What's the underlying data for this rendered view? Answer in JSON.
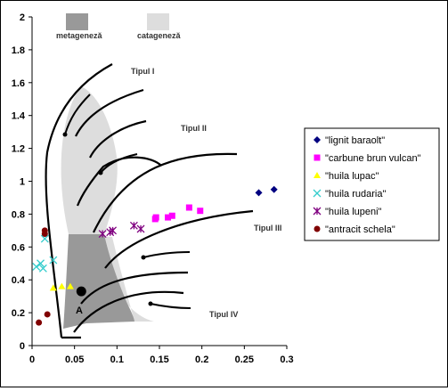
{
  "chart_data": {
    "type": "scatter",
    "title": "",
    "xlabel": "",
    "ylabel": "",
    "xlim": [
      0,
      0.3
    ],
    "ylim": [
      0,
      2
    ],
    "x_ticks": [
      "0",
      "0.05",
      "0.1",
      "0.15",
      "0.2",
      "0.25",
      "0.3"
    ],
    "y_ticks": [
      "0",
      "0.2",
      "0.4",
      "0.6",
      "0.8",
      "1",
      "1.2",
      "1.4",
      "1.6",
      "1.8",
      "2"
    ],
    "grid": false,
    "legend_position": "right",
    "region_labels": {
      "metagenesis": "metageneză",
      "catagenesis": "catageneză"
    },
    "type_labels": [
      "Tipul I",
      "Tipul II",
      "Tipul III",
      "Tipul IV"
    ],
    "point_label": "A",
    "colors": {
      "metagenesis": "#999999",
      "catagenesis": "#dddddd",
      "curves": "#000000"
    },
    "series": [
      {
        "name": "\"lignit baraolt\"",
        "marker": "diamond",
        "color": "#000080",
        "points": [
          [
            0.267,
            0.93
          ],
          [
            0.285,
            0.95
          ]
        ]
      },
      {
        "name": "\"carbune brun vulcan\"",
        "marker": "square",
        "color": "#ff00ff",
        "points": [
          [
            0.145,
            0.77
          ],
          [
            0.146,
            0.78
          ],
          [
            0.16,
            0.78
          ],
          [
            0.165,
            0.79
          ],
          [
            0.185,
            0.84
          ],
          [
            0.198,
            0.82
          ]
        ]
      },
      {
        "name": "\"huila lupac\"",
        "marker": "triangle",
        "color": "#ffff00",
        "points": [
          [
            0.025,
            0.35
          ],
          [
            0.035,
            0.36
          ],
          [
            0.045,
            0.36
          ]
        ]
      },
      {
        "name": "\"huila rudaria\"",
        "marker": "x",
        "color": "#33cccc",
        "points": [
          [
            0.005,
            0.48
          ],
          [
            0.01,
            0.5
          ],
          [
            0.013,
            0.47
          ],
          [
            0.015,
            0.65
          ],
          [
            0.025,
            0.52
          ]
        ]
      },
      {
        "name": "\"huila lupeni\"",
        "marker": "star",
        "color": "#800080",
        "points": [
          [
            0.083,
            0.68
          ],
          [
            0.092,
            0.69
          ],
          [
            0.095,
            0.7
          ],
          [
            0.12,
            0.73
          ],
          [
            0.128,
            0.71
          ]
        ]
      },
      {
        "name": "\"antracit schela\"",
        "marker": "circle",
        "color": "#800000",
        "points": [
          [
            0.008,
            0.14
          ],
          [
            0.015,
            0.68
          ],
          [
            0.015,
            0.7
          ],
          [
            0.018,
            0.19
          ]
        ]
      }
    ],
    "point_A": [
      0.058,
      0.33
    ]
  }
}
